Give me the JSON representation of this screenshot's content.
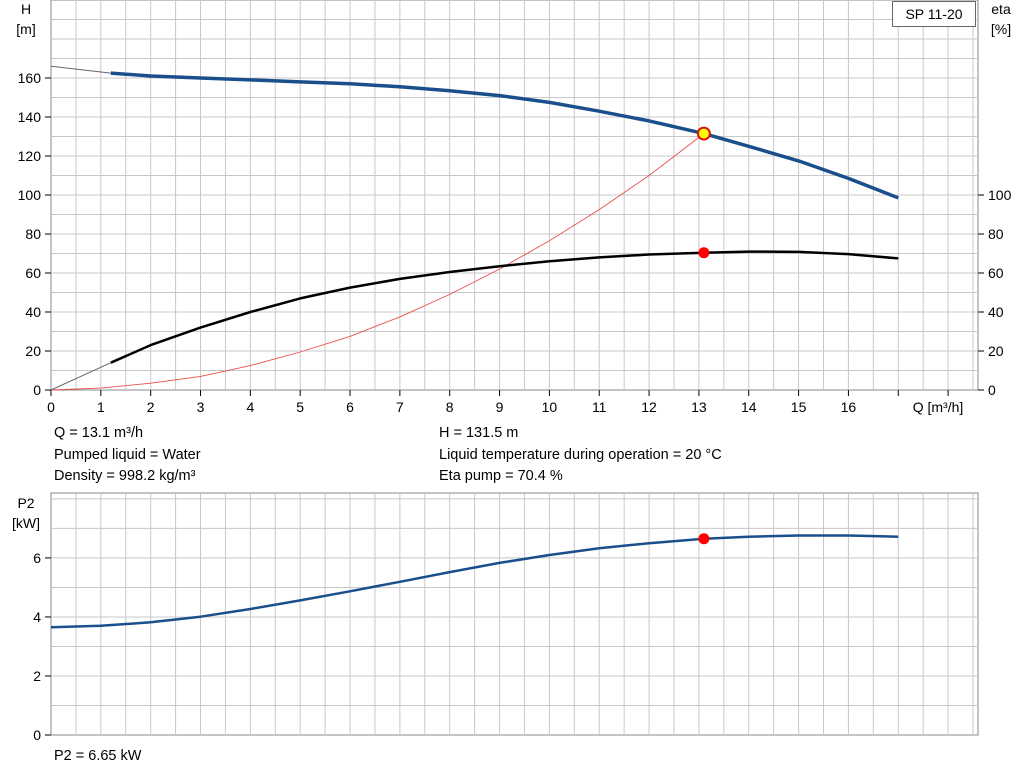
{
  "pump_label": "SP 11-20",
  "info": {
    "q": "Q = 13.1 m³/h",
    "liquid": "Pumped liquid = Water",
    "density": "Density = 998.2 kg/m³",
    "h": "H = 131.5 m",
    "temp": "Liquid temperature during operation = 20 °C",
    "eta": "Eta pump = 70.4 %",
    "p2": "P2 = 6.65 kW"
  },
  "colors": {
    "head_curve": "#1a4f8b",
    "eta_curve": "#000000",
    "system_curve": "#e8504a",
    "p2_curve": "#1a4f8b",
    "duty_point": "#ff0000",
    "duty_point_head": "#ffff00",
    "grid": "#c8c8c8"
  },
  "chart_data": [
    {
      "type": "line",
      "name": "head-efficiency",
      "ylabel_left": [
        "H",
        "[m]"
      ],
      "ylabel_right": [
        "eta",
        "[%]"
      ],
      "xlabel": "Q [m³/h]",
      "xlim": [
        0,
        18.6
      ],
      "ylim": [
        0,
        200
      ],
      "x_ticks": [
        0,
        1,
        2,
        3,
        4,
        5,
        6,
        7,
        8,
        9,
        10,
        11,
        12,
        13,
        14,
        15,
        16
      ],
      "y_ticks_left": [
        0,
        20,
        40,
        60,
        80,
        100,
        120,
        140,
        160
      ],
      "y_ticks_right": [
        0,
        20,
        40,
        60,
        80,
        100
      ],
      "grid": true,
      "series": [
        {
          "name": "H",
          "axis": "left",
          "x": [
            1.2,
            2,
            3,
            4,
            5,
            6,
            7,
            8,
            9,
            10,
            11,
            12,
            13.1,
            14,
            15,
            16,
            17
          ],
          "y": [
            162.5,
            161,
            160,
            159,
            158,
            157,
            155.5,
            153.5,
            151,
            147.5,
            143,
            138,
            131.5,
            125,
            117.5,
            108.5,
            98.5
          ],
          "extension_x": [
            0,
            1.2
          ],
          "extension_y": [
            166,
            162.5
          ]
        },
        {
          "name": "eta",
          "axis": "right",
          "x": [
            1.2,
            2,
            3,
            4,
            5,
            6,
            7,
            8,
            9,
            10,
            11,
            12,
            13.1,
            14,
            15,
            16,
            17
          ],
          "y": [
            14,
            23,
            32,
            40,
            47,
            52.5,
            57,
            60.5,
            63.5,
            66,
            68,
            69.5,
            70.4,
            71,
            70.8,
            69.7,
            67.5
          ],
          "extension_x": [
            0,
            1.2
          ],
          "extension_y": [
            0,
            14
          ]
        },
        {
          "name": "system",
          "axis": "left",
          "x": [
            0,
            1,
            2,
            3,
            4,
            5,
            6,
            7,
            8,
            9,
            10,
            11,
            12,
            13.1
          ],
          "y": [
            0,
            1,
            3.5,
            7,
            12.5,
            19.5,
            27.5,
            37.5,
            49,
            62,
            76.5,
            92.5,
            110,
            131.5
          ]
        }
      ],
      "duty_point": {
        "x": 13.1,
        "h": 131.5,
        "eta": 70.4
      }
    },
    {
      "type": "line",
      "name": "power",
      "ylabel": [
        "P2",
        "[kW]"
      ],
      "xlim": [
        0,
        18.6
      ],
      "ylim": [
        0,
        8.2
      ],
      "y_ticks": [
        0,
        2,
        4,
        6
      ],
      "grid": true,
      "series": [
        {
          "name": "P2",
          "x": [
            0,
            1,
            2,
            3,
            4,
            5,
            6,
            7,
            8,
            9,
            10,
            11,
            12,
            13.1,
            14,
            15,
            16,
            17
          ],
          "y": [
            3.65,
            3.7,
            3.82,
            4.01,
            4.27,
            4.56,
            4.87,
            5.19,
            5.52,
            5.83,
            6.1,
            6.33,
            6.5,
            6.65,
            6.72,
            6.76,
            6.76,
            6.72
          ]
        }
      ],
      "duty_point": {
        "x": 13.1,
        "y": 6.65
      }
    }
  ]
}
